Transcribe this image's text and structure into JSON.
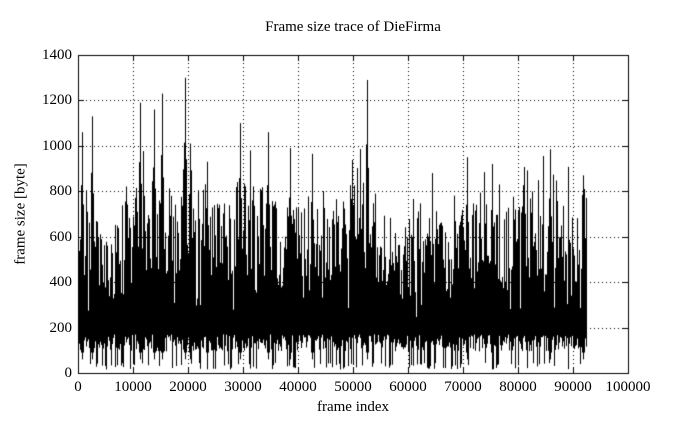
{
  "page": {
    "background": "#ffffff",
    "foreground": "#000000"
  },
  "chart_data": {
    "type": "line",
    "style": "dense-impulse-trace",
    "title": "Frame size trace of DieFirma",
    "xlabel": "frame index",
    "ylabel": "frame size [byte]",
    "xlim": [
      0,
      100000
    ],
    "ylim": [
      0,
      1400
    ],
    "x_ticks": [
      0,
      10000,
      20000,
      30000,
      40000,
      50000,
      60000,
      70000,
      80000,
      90000,
      100000
    ],
    "y_ticks": [
      0,
      200,
      400,
      600,
      800,
      1000,
      1200,
      1400
    ],
    "grid": true,
    "grid_style": "dotted",
    "legend": "none",
    "line_color": "#000000",
    "data_start": 0,
    "data_end": 92500,
    "baseline": {
      "low_min": 95,
      "low_max": 170,
      "dip_min": 15,
      "dip_max": 45,
      "dip_probability": 0.22
    },
    "envelope": [
      [
        0,
        720
      ],
      [
        2000,
        700
      ],
      [
        4000,
        640
      ],
      [
        6000,
        610
      ],
      [
        8000,
        640
      ],
      [
        10000,
        760
      ],
      [
        12000,
        830
      ],
      [
        14000,
        880
      ],
      [
        16000,
        760
      ],
      [
        18000,
        820
      ],
      [
        20000,
        900
      ],
      [
        22000,
        760
      ],
      [
        24000,
        800
      ],
      [
        26000,
        710
      ],
      [
        28000,
        790
      ],
      [
        30000,
        830
      ],
      [
        32000,
        780
      ],
      [
        34000,
        760
      ],
      [
        36000,
        700
      ],
      [
        38000,
        660
      ],
      [
        40000,
        710
      ],
      [
        42000,
        760
      ],
      [
        44000,
        700
      ],
      [
        46000,
        660
      ],
      [
        48000,
        710
      ],
      [
        50000,
        830
      ],
      [
        52000,
        860
      ],
      [
        54000,
        750
      ],
      [
        56000,
        660
      ],
      [
        58000,
        610
      ],
      [
        60000,
        630
      ],
      [
        62000,
        700
      ],
      [
        64000,
        760
      ],
      [
        66000,
        700
      ],
      [
        68000,
        630
      ],
      [
        70000,
        710
      ],
      [
        72000,
        690
      ],
      [
        74000,
        710
      ],
      [
        76000,
        660
      ],
      [
        78000,
        690
      ],
      [
        80000,
        710
      ],
      [
        82000,
        760
      ],
      [
        84000,
        810
      ],
      [
        86000,
        830
      ],
      [
        88000,
        790
      ],
      [
        90000,
        730
      ],
      [
        92500,
        860
      ]
    ],
    "peaks": [
      [
        800,
        1060
      ],
      [
        2600,
        1130
      ],
      [
        11300,
        1190
      ],
      [
        13800,
        1160
      ],
      [
        15300,
        1230
      ],
      [
        19500,
        1300
      ],
      [
        20400,
        1010
      ],
      [
        23500,
        930
      ],
      [
        29500,
        1100
      ],
      [
        34500,
        1060
      ],
      [
        38500,
        990
      ],
      [
        42500,
        965
      ],
      [
        52500,
        1290
      ],
      [
        70700,
        950
      ],
      [
        75300,
        920
      ],
      [
        85800,
        985
      ],
      [
        91800,
        870
      ]
    ]
  }
}
